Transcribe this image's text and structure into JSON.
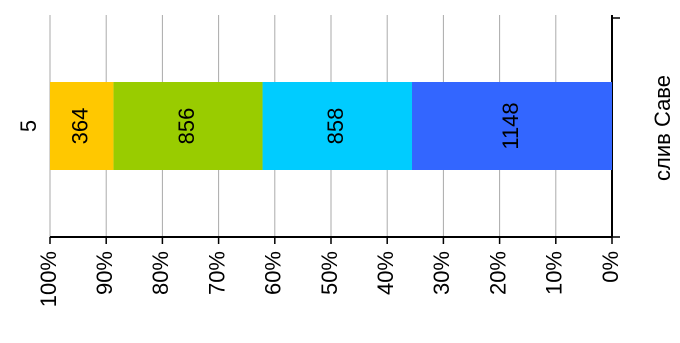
{
  "chart_data": {
    "type": "bar",
    "stacking": "percent",
    "orientation": "horizontal",
    "y_label": "слив Саве",
    "categories": [
      "5"
    ],
    "series": [
      {
        "color": "#3366ff",
        "values": [
          1148
        ]
      },
      {
        "color": "#00ccff",
        "values": [
          858
        ]
      },
      {
        "color": "#99cc00",
        "values": [
          856
        ]
      },
      {
        "color": "#ffc800",
        "values": [
          364
        ]
      }
    ],
    "xlim": [
      100,
      0
    ],
    "xticks": [
      {
        "value": 100,
        "label": "100%"
      },
      {
        "value": 90,
        "label": "90%"
      },
      {
        "value": 80,
        "label": "80%"
      },
      {
        "value": 70,
        "label": "70%"
      },
      {
        "value": 60,
        "label": "60%"
      },
      {
        "value": 50,
        "label": "50%"
      },
      {
        "value": 40,
        "label": "40%"
      },
      {
        "value": 30,
        "label": "30%"
      },
      {
        "value": 20,
        "label": "20%"
      },
      {
        "value": 10,
        "label": "10%"
      },
      {
        "value": 0,
        "label": "0%"
      }
    ],
    "grid": true
  }
}
